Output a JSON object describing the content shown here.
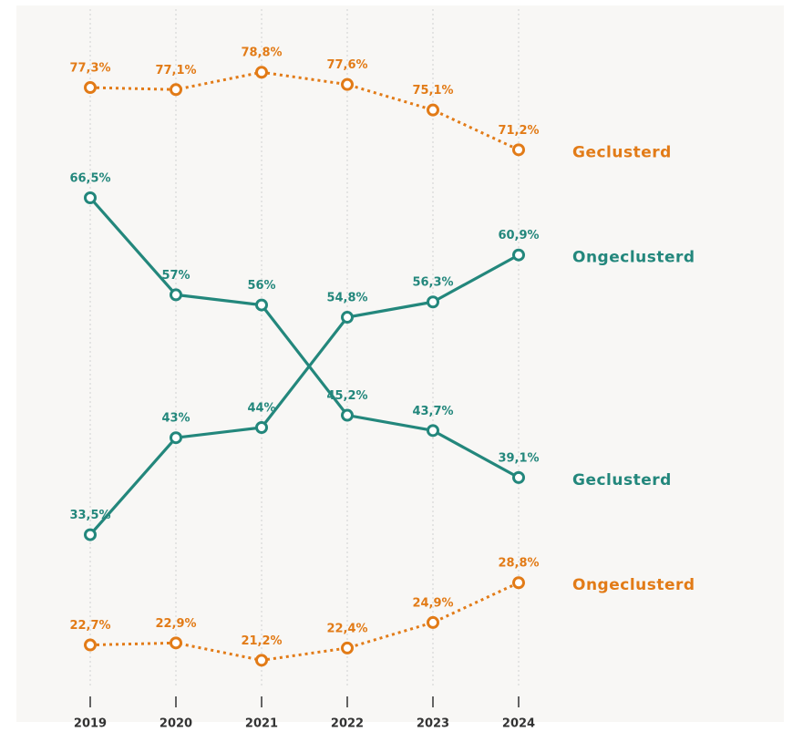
{
  "chart_data": {
    "type": "line",
    "categories": [
      "2019",
      "2020",
      "2021",
      "2022",
      "2023",
      "2024"
    ],
    "ylim": [
      20,
      80
    ],
    "series": [
      {
        "name": "Geclusterd",
        "color": "#e27b17",
        "dashed": true,
        "values": [
          77.3,
          77.1,
          78.8,
          77.6,
          75.1,
          71.2
        ],
        "value_labels": [
          "77,3%",
          "77,1%",
          "78,8%",
          "77,6%",
          "75,1%",
          "71,2%"
        ]
      },
      {
        "name": "Geclusterd",
        "color": "#23877c",
        "dashed": false,
        "values": [
          66.5,
          57,
          56,
          45.2,
          43.7,
          39.1
        ],
        "value_labels": [
          "66,5%",
          "57%",
          "56%",
          "45,2%",
          "43,7%",
          "39,1%"
        ]
      },
      {
        "name": "Ongeclusterd",
        "color": "#23877c",
        "dashed": false,
        "values": [
          33.5,
          43,
          44,
          54.8,
          56.3,
          60.9
        ],
        "value_labels": [
          "33,5%",
          "43%",
          "44%",
          "54,8%",
          "56,3%",
          "60,9%"
        ]
      },
      {
        "name": "Ongeclusterd",
        "color": "#e27b17",
        "dashed": true,
        "values": [
          22.7,
          22.9,
          21.2,
          22.4,
          24.9,
          28.8
        ],
        "value_labels": [
          "22,7%",
          "22,9%",
          "21,2%",
          "22,4%",
          "24,9%",
          "28,8%"
        ]
      }
    ]
  }
}
